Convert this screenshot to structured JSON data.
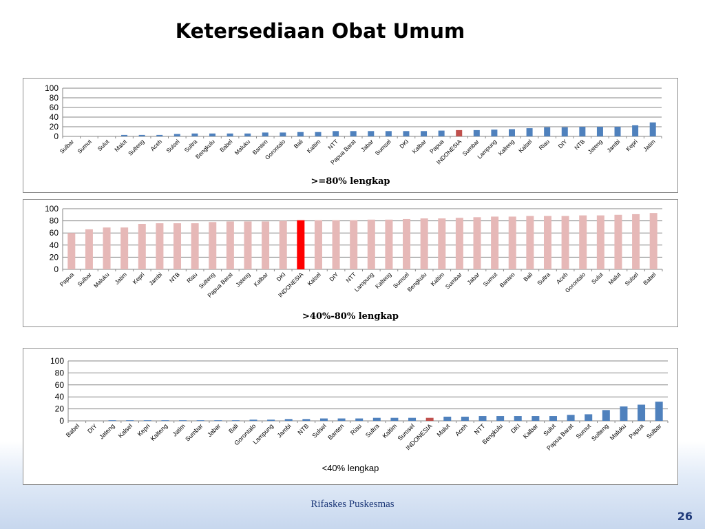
{
  "slide": {
    "title": "Ketersediaan Obat Umum",
    "footer": "Rifaskes Puskesmas",
    "page_number": "26"
  },
  "colors": {
    "blue": "#4f81bd",
    "highlight_dark_red": "#c0504d",
    "pink": "#e6b8b7",
    "highlight_red": "#ff0000"
  },
  "chart_data": [
    {
      "type": "bar",
      "caption": ">=80% lengkap",
      "ylim": [
        0,
        100
      ],
      "yticks": [
        0,
        20,
        40,
        60,
        80,
        100
      ],
      "grid": true,
      "bar_color": "#4f81bd",
      "highlight_color": "#c0504d",
      "highlight_category": "INDONESIA",
      "categories": [
        "Sulbar",
        "Sumut",
        "Sulut",
        "Malut",
        "Sulteng",
        "Aceh",
        "Sulsel",
        "Sultra",
        "Bengkulu",
        "Babel",
        "Maluku",
        "Banten",
        "Gorontalo",
        "Bali",
        "Kaltim",
        "NTT",
        "Papua Barat",
        "Jabar",
        "Sumsel",
        "DKI",
        "Kalbar",
        "Papua",
        "INDONESIA",
        "Sumbar",
        "Lampung",
        "Kalteng",
        "Kalsel",
        "Riau",
        "DIY",
        "NTB",
        "Jateng",
        "Jambi",
        "Kepri",
        "Jatim"
      ],
      "values": [
        0,
        0,
        0,
        3,
        3,
        3,
        5,
        6,
        6,
        6,
        6,
        8,
        8,
        9,
        9,
        11,
        11,
        11,
        11,
        11,
        11,
        12,
        13,
        13,
        14,
        15,
        17,
        19,
        19,
        20,
        20,
        20,
        23,
        29
      ]
    },
    {
      "type": "bar",
      "caption": ">40%-80% lengkap",
      "ylim": [
        0,
        100
      ],
      "yticks": [
        0,
        20,
        40,
        60,
        80,
        100
      ],
      "grid": true,
      "bar_color": "#e6b8b7",
      "highlight_color": "#ff0000",
      "highlight_category": "INDONESIA",
      "categories": [
        "Papua",
        "Sulbar",
        "Maluku",
        "Jatim",
        "Kepri",
        "Jambi",
        "NTB",
        "Riau",
        "Sulteng",
        "Papua Barat",
        "Jateng",
        "Kalbar",
        "DKI",
        "INDONESIA",
        "Kalsel",
        "DIY",
        "NTT",
        "Lampung",
        "Kalteng",
        "Sumsel",
        "Bengkulu",
        "Kaltim",
        "Sumbar",
        "Jabar",
        "Sumut",
        "Banten",
        "Bali",
        "Sultra",
        "Aceh",
        "Gorontalo",
        "Sulut",
        "Malut",
        "Sulsel",
        "Babel"
      ],
      "values": [
        60,
        66,
        69,
        69,
        75,
        76,
        76,
        76,
        78,
        79,
        79,
        79,
        80,
        81,
        81,
        81,
        81,
        82,
        82,
        83,
        84,
        84,
        85,
        86,
        87,
        87,
        88,
        88,
        88,
        89,
        89,
        90,
        91,
        93
      ]
    },
    {
      "type": "bar",
      "caption": "<40% lengkap",
      "ylim": [
        0,
        100
      ],
      "yticks": [
        0,
        20,
        40,
        60,
        80,
        100
      ],
      "grid": true,
      "bar_color": "#4f81bd",
      "highlight_color": "#c0504d",
      "highlight_category": "INDONESIA",
      "categories": [
        "Babel",
        "DIY",
        "Jateng",
        "Kalsel",
        "Kepri",
        "Kalteng",
        "Jatim",
        "Sumbar",
        "Jabar",
        "Bali",
        "Gorontalo",
        "Lampung",
        "Jambi",
        "NTB",
        "Sulsel",
        "Banten",
        "Riau",
        "Sultra",
        "Kaltim",
        "Sumsel",
        "INDONESIA",
        "Malut",
        "Aceh",
        "NTT",
        "Bengkulu",
        "DKI",
        "Kalbar",
        "Sulut",
        "Papua Barat",
        "Sumut",
        "Sulteng",
        "Maluku",
        "Papua",
        "Sulbar"
      ],
      "values": [
        0,
        0,
        1,
        1,
        1,
        1,
        1,
        1,
        1,
        1,
        2,
        2,
        3,
        3,
        4,
        4,
        4,
        5,
        5,
        5,
        5,
        7,
        7,
        8,
        8,
        8,
        8,
        8,
        10,
        11,
        18,
        24,
        27,
        32
      ]
    }
  ]
}
